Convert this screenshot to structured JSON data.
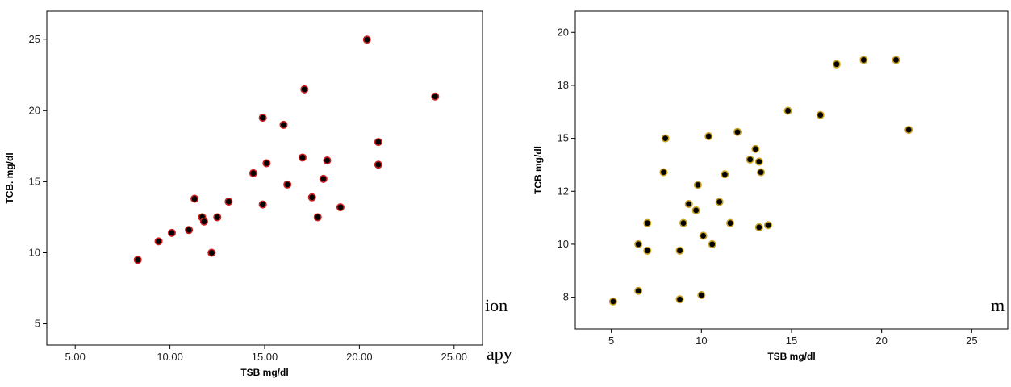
{
  "fragments": {
    "left_top": "ion",
    "left_bottom": "apy",
    "right_edge": "m"
  },
  "colors": {
    "left_point_fill": "#000000",
    "left_point_stroke": "#cc1f1f",
    "right_point_fill": "#000000",
    "right_point_stroke": "#c8a020",
    "frame": "#000000"
  },
  "chart_data": [
    {
      "type": "scatter",
      "xlabel": "TSB mg/dl",
      "ylabel": "TCB. mg/dl",
      "xlim": [
        3.5,
        26.5
      ],
      "ylim": [
        3.5,
        27
      ],
      "xticks": [
        5,
        10,
        15,
        20,
        25
      ],
      "xtick_labels": [
        "5.00",
        "10.00",
        "15.00",
        "20.00",
        "25.00"
      ],
      "yticks": [
        5,
        10,
        15,
        20,
        25
      ],
      "ytick_labels": [
        "5",
        "10",
        "15",
        "20",
        "25"
      ],
      "grid": false,
      "points": [
        {
          "x": 8.3,
          "y": 9.5
        },
        {
          "x": 9.4,
          "y": 10.8
        },
        {
          "x": 10.1,
          "y": 11.4
        },
        {
          "x": 11.0,
          "y": 11.6
        },
        {
          "x": 11.3,
          "y": 13.8
        },
        {
          "x": 11.7,
          "y": 12.5
        },
        {
          "x": 11.8,
          "y": 12.2
        },
        {
          "x": 12.2,
          "y": 10.0
        },
        {
          "x": 12.5,
          "y": 12.5
        },
        {
          "x": 13.1,
          "y": 13.6
        },
        {
          "x": 14.4,
          "y": 15.6
        },
        {
          "x": 14.9,
          "y": 19.5
        },
        {
          "x": 14.9,
          "y": 13.4
        },
        {
          "x": 15.1,
          "y": 16.3
        },
        {
          "x": 16.0,
          "y": 19.0
        },
        {
          "x": 16.2,
          "y": 14.8
        },
        {
          "x": 17.0,
          "y": 16.7
        },
        {
          "x": 17.1,
          "y": 21.5
        },
        {
          "x": 17.5,
          "y": 13.9
        },
        {
          "x": 17.8,
          "y": 12.5
        },
        {
          "x": 18.1,
          "y": 15.2
        },
        {
          "x": 18.3,
          "y": 16.5
        },
        {
          "x": 19.0,
          "y": 13.2
        },
        {
          "x": 20.4,
          "y": 25.0
        },
        {
          "x": 21.0,
          "y": 17.8
        },
        {
          "x": 21.0,
          "y": 16.2
        },
        {
          "x": 24.0,
          "y": 21.0
        }
      ]
    },
    {
      "type": "scatter",
      "xlabel": "TSB mg/dl",
      "ylabel": "TCB mg/dl",
      "xlim": [
        3.0,
        27.0
      ],
      "ylim": [
        6.0,
        21.0
      ],
      "xticks": [
        5,
        10,
        15,
        20,
        25
      ],
      "xtick_labels": [
        "5",
        "10",
        "15",
        "20",
        "25"
      ],
      "yticks": [
        7.5,
        10,
        12.5,
        15,
        17.5,
        20
      ],
      "ytick_labels": [
        "8",
        "10",
        "12",
        "15",
        "18",
        "20"
      ],
      "grid": false,
      "points": [
        {
          "x": 5.1,
          "y": 7.3
        },
        {
          "x": 6.5,
          "y": 7.8
        },
        {
          "x": 6.5,
          "y": 10.0
        },
        {
          "x": 7.0,
          "y": 9.7
        },
        {
          "x": 7.0,
          "y": 11.0
        },
        {
          "x": 7.9,
          "y": 13.4
        },
        {
          "x": 8.0,
          "y": 15.0
        },
        {
          "x": 8.8,
          "y": 7.4
        },
        {
          "x": 8.8,
          "y": 9.7
        },
        {
          "x": 9.0,
          "y": 11.0
        },
        {
          "x": 9.3,
          "y": 11.9
        },
        {
          "x": 9.7,
          "y": 11.6
        },
        {
          "x": 9.8,
          "y": 12.8
        },
        {
          "x": 10.0,
          "y": 7.6
        },
        {
          "x": 10.1,
          "y": 10.4
        },
        {
          "x": 10.4,
          "y": 15.1
        },
        {
          "x": 10.6,
          "y": 10.0
        },
        {
          "x": 11.0,
          "y": 12.0
        },
        {
          "x": 11.3,
          "y": 13.3
        },
        {
          "x": 11.6,
          "y": 11.0
        },
        {
          "x": 12.0,
          "y": 15.3
        },
        {
          "x": 12.7,
          "y": 14.0
        },
        {
          "x": 13.0,
          "y": 14.5
        },
        {
          "x": 13.2,
          "y": 13.9
        },
        {
          "x": 13.2,
          "y": 10.8
        },
        {
          "x": 13.3,
          "y": 13.4
        },
        {
          "x": 13.7,
          "y": 10.9
        },
        {
          "x": 14.8,
          "y": 16.3
        },
        {
          "x": 16.6,
          "y": 16.1
        },
        {
          "x": 17.5,
          "y": 18.5
        },
        {
          "x": 19.0,
          "y": 18.7
        },
        {
          "x": 20.8,
          "y": 18.7
        },
        {
          "x": 21.5,
          "y": 15.4
        }
      ]
    }
  ]
}
